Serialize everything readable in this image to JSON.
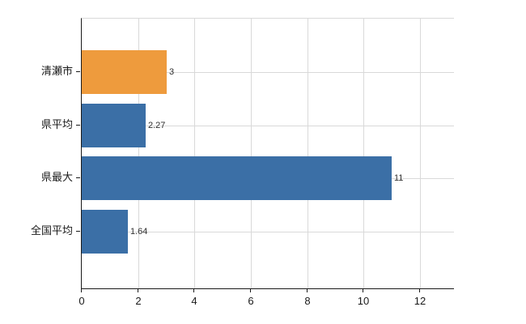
{
  "chart_data": {
    "type": "bar",
    "orientation": "horizontal",
    "title": "",
    "xlabel": "",
    "ylabel": "",
    "categories": [
      "清瀬市",
      "県平均",
      "県最大",
      "全国平均"
    ],
    "values": [
      3,
      2.27,
      11,
      1.64
    ],
    "value_labels": [
      "3",
      "2.27",
      "11",
      "1.64"
    ],
    "bar_colors": [
      "#EE9B3D",
      "#3B6FA6",
      "#3B6FA6",
      "#3B6FA6"
    ],
    "x_ticks": [
      0,
      2,
      4,
      6,
      8,
      10,
      12
    ],
    "x_tick_labels": [
      "0",
      "2",
      "4",
      "6",
      "8",
      "10",
      "12"
    ],
    "xlim": [
      0,
      13.2
    ],
    "grid": true,
    "legend": false
  },
  "colors": {
    "grid": "#d9d9d9",
    "axis": "#1a1a1a",
    "value_label": "#2f2f2f",
    "tick_label": "#1a1a1a",
    "background": "#ffffff"
  }
}
